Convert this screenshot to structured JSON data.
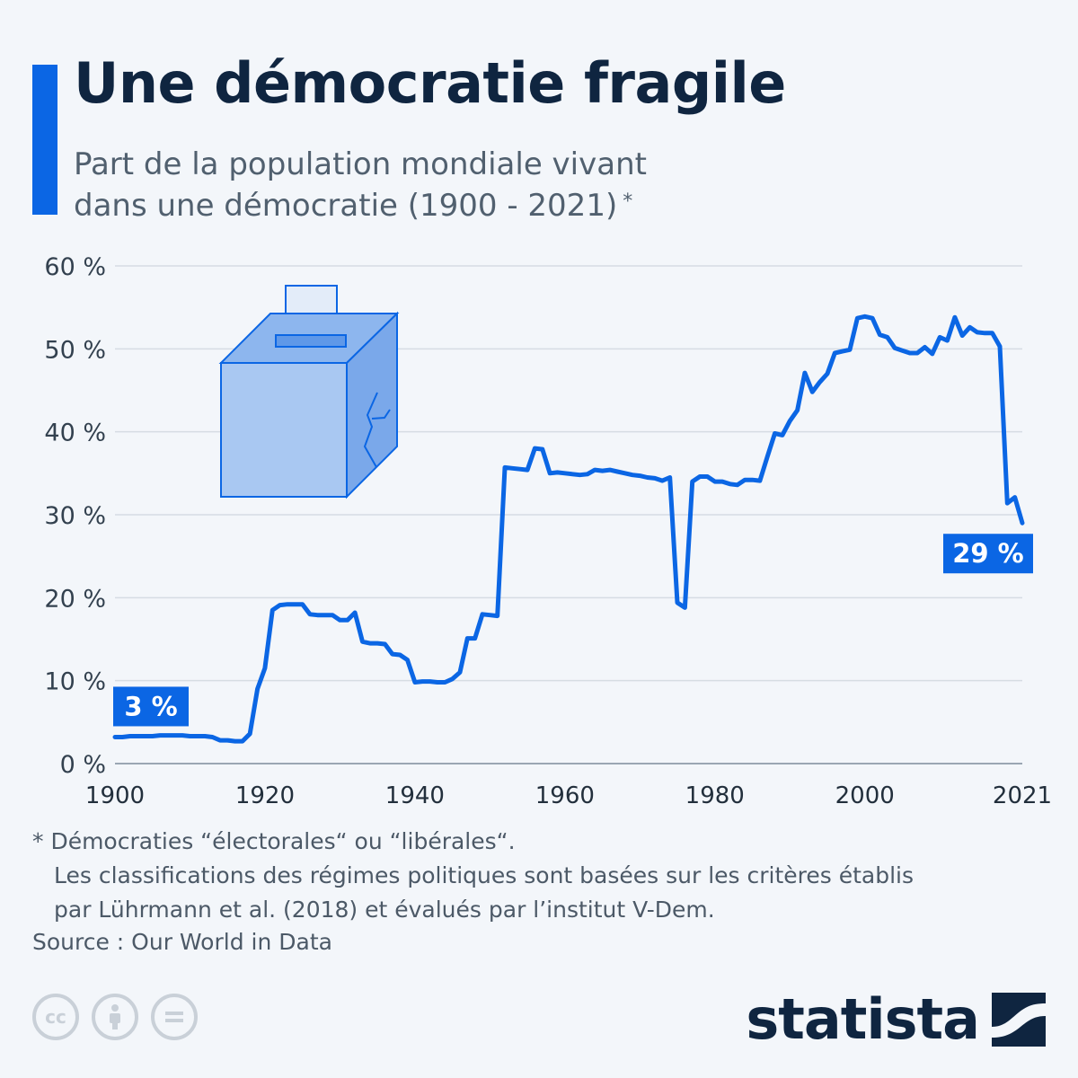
{
  "header": {
    "title": "Une démocratie fragile",
    "subtitle_line1": "Part de la population mondiale vivant",
    "subtitle_line2": "dans une démocratie (1900 - 2021)",
    "subtitle_marker": "*"
  },
  "colors": {
    "accent": "#0b66e4",
    "line": "#0b66e4",
    "title": "#0f2540",
    "text": "#51606f",
    "grid": "#d6dce3",
    "ballot_box": "#a9c8f2"
  },
  "chart_data": {
    "type": "line",
    "title": "Une démocratie fragile",
    "subtitle": "Part de la population mondiale vivant dans une démocratie (1900 - 2021)",
    "xlabel": "",
    "ylabel": "",
    "xlim": [
      1900,
      2021
    ],
    "ylim": [
      0,
      60
    ],
    "x_ticks": [
      "1900",
      "1920",
      "1940",
      "1960",
      "1980",
      "2000",
      "2021"
    ],
    "x_tick_values": [
      1900,
      1920,
      1940,
      1960,
      1980,
      2000,
      2021
    ],
    "y_ticks": [
      "0 %",
      "10 %",
      "20 %",
      "30 %",
      "40 %",
      "50 %",
      "60 %"
    ],
    "y_tick_values": [
      0,
      10,
      20,
      30,
      40,
      50,
      60
    ],
    "grid": true,
    "legend": "none",
    "series": [
      {
        "name": "",
        "x": [
          1900,
          1901,
          1902,
          1903,
          1904,
          1905,
          1906,
          1907,
          1908,
          1909,
          1910,
          1911,
          1912,
          1913,
          1914,
          1915,
          1916,
          1917,
          1918,
          1919,
          1920,
          1921,
          1922,
          1923,
          1924,
          1925,
          1926,
          1927,
          1928,
          1929,
          1930,
          1931,
          1932,
          1933,
          1934,
          1935,
          1936,
          1937,
          1938,
          1939,
          1940,
          1941,
          1942,
          1943,
          1944,
          1945,
          1946,
          1947,
          1948,
          1949,
          1950,
          1951,
          1952,
          1953,
          1954,
          1955,
          1956,
          1957,
          1958,
          1959,
          1960,
          1961,
          1962,
          1963,
          1964,
          1965,
          1966,
          1967,
          1968,
          1969,
          1970,
          1971,
          1972,
          1973,
          1974,
          1975,
          1976,
          1977,
          1978,
          1979,
          1980,
          1981,
          1982,
          1983,
          1984,
          1985,
          1986,
          1987,
          1988,
          1989,
          1990,
          1991,
          1992,
          1993,
          1994,
          1995,
          1996,
          1997,
          1998,
          1999,
          2000,
          2001,
          2002,
          2003,
          2004,
          2005,
          2006,
          2007,
          2008,
          2009,
          2010,
          2011,
          2012,
          2013,
          2014,
          2015,
          2016,
          2017,
          2018,
          2019,
          2020,
          2021
        ],
        "values": [
          3.2,
          3.2,
          3.3,
          3.3,
          3.3,
          3.3,
          3.4,
          3.4,
          3.4,
          3.4,
          3.3,
          3.3,
          3.3,
          3.2,
          2.8,
          2.8,
          2.7,
          2.7,
          3.6,
          9.0,
          11.5,
          18.5,
          19.1,
          19.2,
          19.2,
          19.2,
          18.0,
          17.9,
          17.9,
          17.9,
          17.3,
          17.3,
          18.2,
          14.7,
          14.5,
          14.5,
          14.4,
          13.2,
          13.1,
          12.5,
          9.8,
          9.9,
          9.9,
          9.8,
          9.8,
          10.2,
          11.0,
          15.1,
          15.1,
          18.0,
          17.9,
          17.8,
          35.7,
          35.6,
          35.5,
          35.4,
          38.0,
          37.9,
          35.0,
          35.1,
          35.0,
          34.9,
          34.8,
          34.9,
          35.4,
          35.3,
          35.4,
          35.2,
          35.0,
          34.8,
          34.7,
          34.5,
          34.4,
          34.1,
          34.5,
          19.4,
          18.8,
          34.0,
          34.6,
          34.6,
          34.0,
          34.0,
          33.7,
          33.6,
          34.2,
          34.2,
          34.1,
          37.0,
          39.8,
          39.6,
          41.3,
          42.6,
          47.1,
          44.8,
          46.0,
          47.0,
          49.5,
          49.7,
          49.9,
          53.7,
          53.9,
          53.7,
          51.7,
          51.4,
          50.1,
          49.8,
          49.5,
          49.5,
          50.2,
          49.4,
          51.4,
          51.0,
          53.8,
          51.6,
          52.6,
          52.0,
          51.9,
          51.9,
          50.3,
          31.4,
          32.1,
          29.0
        ]
      }
    ],
    "data_labels": [
      {
        "x": 1900,
        "y": 3.2,
        "text": "3 %",
        "position": "above"
      },
      {
        "x": 2021,
        "y": 29.0,
        "text": "29 %",
        "position": "below"
      }
    ]
  },
  "footnote": {
    "line1": "* Démocraties “électorales“ ou “libérales“.",
    "line2": "Les classifications des régimes politiques sont basées sur les critères établis",
    "line3": "par Lührmann et al. (2018) et évalués par l’institut V-Dem."
  },
  "source": "Source : Our World in Data",
  "license_icons": [
    "cc-icon",
    "attribution-icon",
    "no-derivatives-icon"
  ],
  "brand": {
    "name": "statista",
    "logo_icon": "statista-logo-icon"
  }
}
